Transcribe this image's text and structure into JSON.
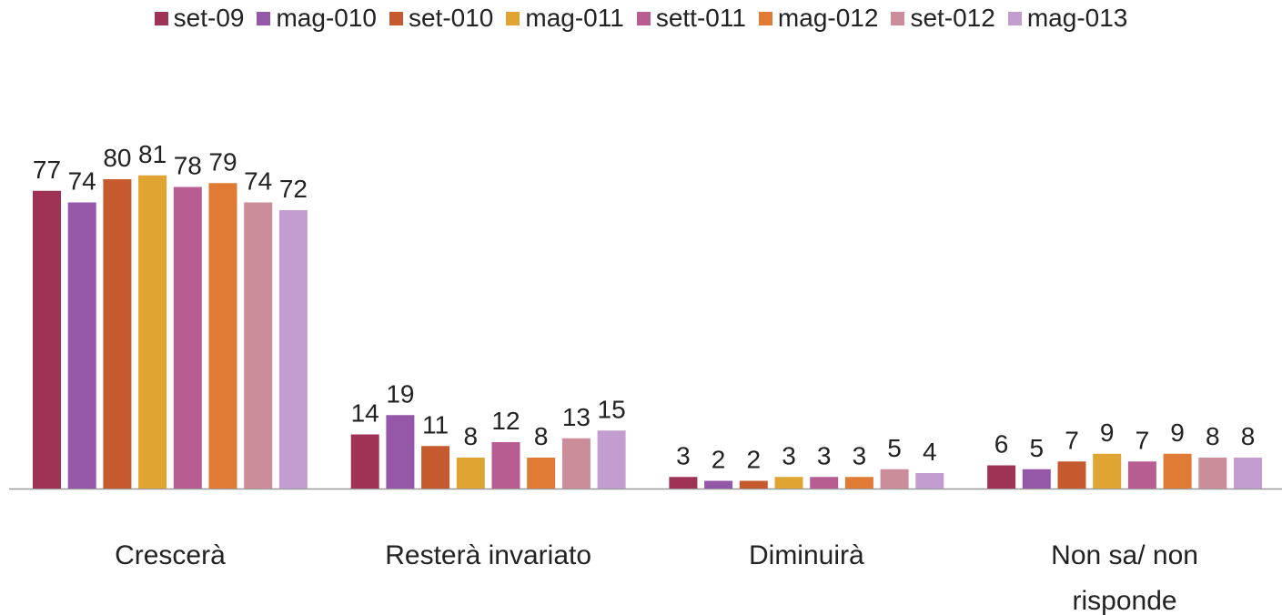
{
  "chart_data": {
    "type": "bar",
    "categories": [
      "Crescerà",
      "Resterà invariato",
      "Diminuirà",
      "Non sa/ non risponde"
    ],
    "series": [
      {
        "name": "set-09",
        "color": "#9e3356",
        "values": [
          77,
          14,
          3,
          6
        ]
      },
      {
        "name": "mag-010",
        "color": "#9558a8",
        "values": [
          74,
          19,
          2,
          5
        ]
      },
      {
        "name": "set-010",
        "color": "#c55a2e",
        "values": [
          80,
          11,
          2,
          7
        ]
      },
      {
        "name": "mag-011",
        "color": "#e0a432",
        "values": [
          81,
          8,
          3,
          9
        ]
      },
      {
        "name": "sett-011",
        "color": "#b75d92",
        "values": [
          78,
          12,
          3,
          7
        ]
      },
      {
        "name": "mag-012",
        "color": "#e07b35",
        "values": [
          79,
          8,
          3,
          9
        ]
      },
      {
        "name": "set-012",
        "color": "#cc8d9b",
        "values": [
          74,
          13,
          5,
          8
        ]
      },
      {
        "name": "mag-013",
        "color": "#c49dd0",
        "values": [
          72,
          15,
          4,
          8
        ]
      }
    ]
  }
}
